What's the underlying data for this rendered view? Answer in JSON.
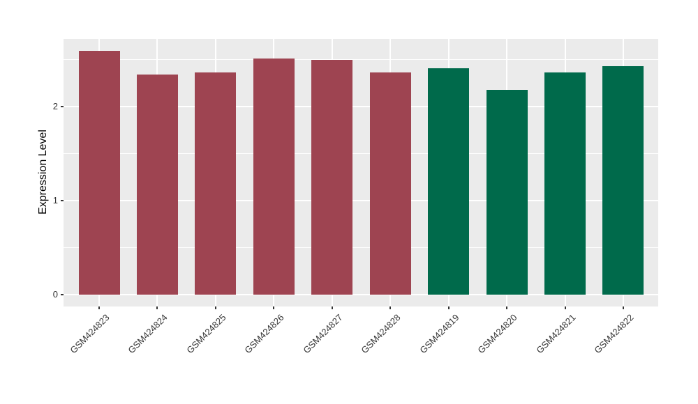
{
  "chart_data": {
    "type": "bar",
    "title": "",
    "xlabel": "",
    "ylabel": "Expression Level",
    "categories": [
      "GSM424823",
      "GSM424824",
      "GSM424825",
      "GSM424826",
      "GSM424827",
      "GSM424828",
      "GSM424819",
      "GSM424820",
      "GSM424821",
      "GSM424822"
    ],
    "values": [
      2.59,
      2.34,
      2.36,
      2.51,
      2.5,
      2.36,
      2.41,
      2.18,
      2.36,
      2.43
    ],
    "bar_colors": [
      "#9E4451",
      "#9E4451",
      "#9E4451",
      "#9E4451",
      "#9E4451",
      "#9E4451",
      "#006A4B",
      "#006A4B",
      "#006A4B",
      "#006A4B"
    ],
    "groups": [
      {
        "name": "red-group",
        "color": "#9E4451",
        "categories": [
          "GSM424823",
          "GSM424824",
          "GSM424825",
          "GSM424826",
          "GSM424827",
          "GSM424828"
        ]
      },
      {
        "name": "green-group",
        "color": "#006A4B",
        "categories": [
          "GSM424819",
          "GSM424820",
          "GSM424821",
          "GSM424822"
        ]
      }
    ],
    "y_ticks": [
      0,
      1,
      2
    ],
    "y_minor_ticks": [
      0.5,
      1.5,
      2.5
    ],
    "ylim": [
      -0.13,
      2.72
    ],
    "grid": true,
    "legend": false,
    "panel_background": "#EBEBEB",
    "gridline_color": "#FFFFFF",
    "tick_color": "#333333"
  }
}
